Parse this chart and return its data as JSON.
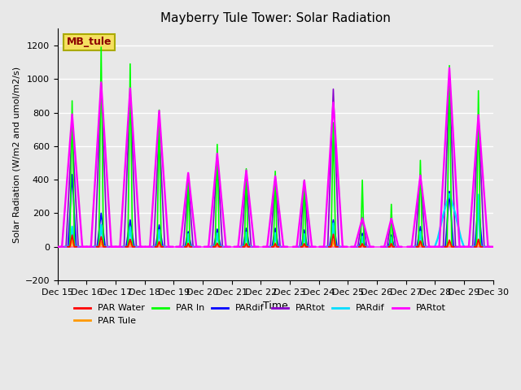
{
  "title": "Mayberry Tule Tower: Solar Radiation",
  "xlabel": "Time",
  "ylabel": "Solar Radiation (W/m2 and umol/m2/s)",
  "ylim": [
    -200,
    1300
  ],
  "yticks": [
    -200,
    0,
    200,
    400,
    600,
    800,
    1000,
    1200
  ],
  "xlim": [
    0,
    15
  ],
  "xtick_labels": [
    "Dec 15",
    "Dec 16",
    "Dec 17",
    "Dec 18",
    "Dec 19",
    "Dec 20",
    "Dec 21",
    "Dec 22",
    "Dec 23",
    "Dec 24",
    "Dec 25",
    "Dec 26",
    "Dec 27",
    "Dec 28",
    "Dec 29",
    "Dec 30"
  ],
  "background_color": "#e8e8e8",
  "plot_bg": "#e8e8e8",
  "grid_color": "white",
  "legend_label": "MB_tule",
  "c_par_water": "#ff0000",
  "c_par_tule": "#ff9900",
  "c_par_in": "#00ff00",
  "c_pardif_blue": "#0000ff",
  "c_partot_purple": "#8800cc",
  "c_pardif_cyan": "#00ddff",
  "c_partot_magenta": "#ff00ff",
  "series_names": [
    "PAR Water",
    "PAR Tule",
    "PAR In",
    "PARdif",
    "PARtot",
    "PARdif",
    "PARtot"
  ],
  "day_peaks": [
    {
      "day": 0,
      "par_water": 70,
      "par_tule": 55,
      "par_in": 870,
      "pardif_b": 430,
      "partot_p": 700,
      "pardif_c": 120,
      "partot_m": 790,
      "pw_wide": 0.35,
      "pw_narrow": 0.08
    },
    {
      "day": 1,
      "par_water": 60,
      "par_tule": 30,
      "par_in": 1190,
      "pardif_b": 200,
      "partot_p": 970,
      "pardif_c": 130,
      "partot_m": 980,
      "pw_wide": 0.35,
      "pw_narrow": 0.08
    },
    {
      "day": 2,
      "par_water": 45,
      "par_tule": 30,
      "par_in": 1090,
      "pardif_b": 160,
      "partot_p": 930,
      "pardif_c": 115,
      "partot_m": 945,
      "pw_wide": 0.35,
      "pw_narrow": 0.08
    },
    {
      "day": 3,
      "par_water": 30,
      "par_tule": 30,
      "par_in": 815,
      "pardif_b": 130,
      "partot_p": 700,
      "pardif_c": 100,
      "partot_m": 810,
      "pw_wide": 0.32,
      "pw_narrow": 0.07
    },
    {
      "day": 4,
      "par_water": 20,
      "par_tule": 20,
      "par_in": 435,
      "pardif_b": 90,
      "partot_p": 390,
      "pardif_c": 75,
      "partot_m": 440,
      "pw_wide": 0.28,
      "pw_narrow": 0.06
    },
    {
      "day": 5,
      "par_water": 20,
      "par_tule": 22,
      "par_in": 610,
      "pardif_b": 105,
      "partot_p": 545,
      "pardif_c": 80,
      "partot_m": 555,
      "pw_wide": 0.3,
      "pw_narrow": 0.07
    },
    {
      "day": 6,
      "par_water": 18,
      "par_tule": 20,
      "par_in": 465,
      "pardif_b": 110,
      "partot_p": 415,
      "pardif_c": 85,
      "partot_m": 455,
      "pw_wide": 0.28,
      "pw_narrow": 0.06
    },
    {
      "day": 7,
      "par_water": 18,
      "par_tule": 22,
      "par_in": 450,
      "pardif_b": 110,
      "partot_p": 415,
      "pardif_c": 82,
      "partot_m": 420,
      "pw_wide": 0.28,
      "pw_narrow": 0.06
    },
    {
      "day": 8,
      "par_water": 18,
      "par_tule": 18,
      "par_in": 398,
      "pardif_b": 100,
      "partot_p": 395,
      "pardif_c": 75,
      "partot_m": 395,
      "pw_wide": 0.26,
      "pw_narrow": 0.06
    },
    {
      "day": 9,
      "par_water": 75,
      "par_tule": 40,
      "par_in": 740,
      "pardif_b": 160,
      "partot_p": 940,
      "pardif_c": 140,
      "partot_m": 860,
      "pw_wide": 0.32,
      "pw_narrow": 0.08
    },
    {
      "day": 10,
      "par_water": 18,
      "par_tule": 18,
      "par_in": 397,
      "pardif_b": 80,
      "partot_p": 175,
      "pardif_c": 60,
      "partot_m": 170,
      "pw_wide": 0.26,
      "pw_narrow": 0.06
    },
    {
      "day": 11,
      "par_water": 18,
      "par_tule": 18,
      "par_in": 253,
      "pardif_b": 70,
      "partot_p": 168,
      "pardif_c": 55,
      "partot_m": 168,
      "pw_wide": 0.24,
      "pw_narrow": 0.05
    },
    {
      "day": 12,
      "par_water": 35,
      "par_tule": 30,
      "par_in": 515,
      "pardif_b": 120,
      "partot_p": 430,
      "pardif_c": 90,
      "partot_m": 425,
      "pw_wide": 0.3,
      "pw_narrow": 0.07
    },
    {
      "day": 13,
      "par_water": 40,
      "par_tule": 35,
      "par_in": 1080,
      "pardif_b": 330,
      "partot_p": 995,
      "pardif_c": 310,
      "partot_m": 1065,
      "pw_wide": 0.35,
      "pw_narrow": 0.08
    },
    {
      "day": 14,
      "par_water": 45,
      "par_tule": 42,
      "par_in": 930,
      "pardif_b": 260,
      "partot_p": 775,
      "pardif_c": 310,
      "partot_m": 785,
      "pw_wide": 0.33,
      "pw_narrow": 0.07
    }
  ],
  "cyan_special_day": 13,
  "cyan_special_peak": 315
}
